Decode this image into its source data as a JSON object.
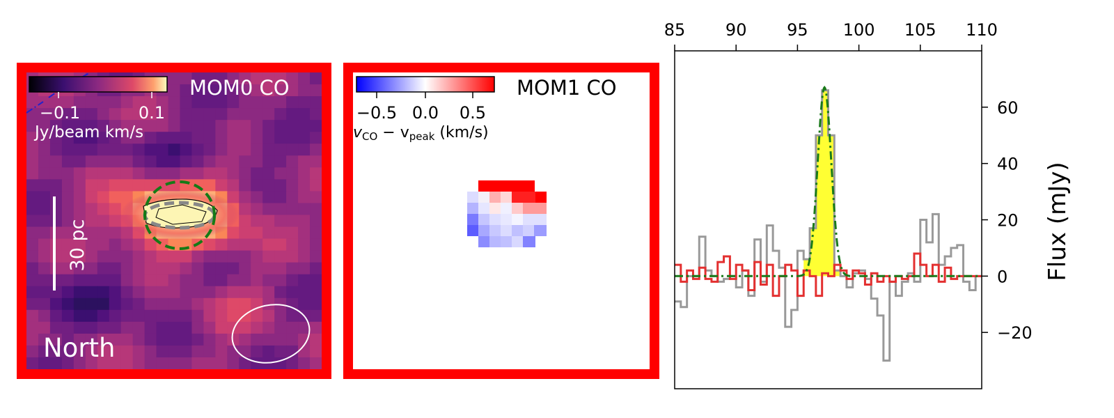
{
  "panels": {
    "mom0": {
      "label": "MOM0 CO",
      "colorbar": {
        "ticks": [
          "−0.1",
          "0.1"
        ],
        "unit": "Jy/beam km/s"
      },
      "scalebar_label": "30 pc",
      "region_label": "North"
    },
    "mom1": {
      "label": "MOM1 CO",
      "colorbar": {
        "ticks": [
          "−0.5",
          "0.0",
          "0.5"
        ],
        "label_main": "v",
        "label_sub1": "CO",
        "label_mid": " − v",
        "label_sub2": "peak",
        "label_unit": " (km/s)"
      }
    }
  },
  "chart_data": {
    "type": "line",
    "ylabel": "Flux (mJy)",
    "xlim": [
      85,
      110
    ],
    "ylim": [
      -40,
      80
    ],
    "x_ticks": [
      85,
      90,
      95,
      100,
      105,
      110
    ],
    "y_ticks": [
      -20,
      0,
      20,
      40,
      60
    ],
    "x_tick_labels": [
      "85",
      "90",
      "95",
      "100",
      "105",
      "110"
    ],
    "y_tick_labels": [
      "−20",
      "0",
      "20",
      "40",
      "60"
    ],
    "series": [
      {
        "style": "steps",
        "color": "#999999",
        "x": [
          85,
          85.5,
          86,
          86.5,
          87,
          87.5,
          88,
          88.5,
          89,
          89.5,
          90,
          90.5,
          91,
          91.5,
          92,
          92.5,
          93,
          93.5,
          94,
          94.5,
          95,
          95.5,
          96,
          96.5,
          97,
          97.5,
          98,
          98.5,
          99,
          99.5,
          100,
          100.5,
          101,
          101.5,
          102,
          102.5,
          103,
          103.5,
          104,
          104.5,
          105,
          105.5,
          106,
          106.5,
          107,
          107.5,
          108,
          108.5,
          109,
          109.5
        ],
        "y": [
          -9,
          -11,
          0,
          0,
          14,
          2,
          0,
          -2,
          -1,
          0,
          -4,
          2,
          -7,
          13,
          -2,
          18,
          9,
          3,
          -18,
          -12,
          9,
          6,
          17,
          50,
          66,
          50,
          2,
          0,
          -4,
          1,
          2,
          -1,
          -8,
          -14,
          -30,
          -2,
          -7,
          -2,
          1,
          -2,
          20,
          12,
          22,
          4,
          7,
          10,
          11,
          -2,
          -5,
          0
        ]
      },
      {
        "style": "steps",
        "color": "#e33030",
        "x": [
          85,
          85.5,
          86,
          86.5,
          87,
          87.5,
          88,
          88.5,
          89,
          89.5,
          90,
          90.5,
          91,
          91.5,
          92,
          92.5,
          93,
          93.5,
          94,
          94.5,
          95,
          95.5,
          96,
          96.5,
          97,
          97.5,
          98,
          98.5,
          99,
          99.5,
          100,
          100.5,
          101,
          101.5,
          102,
          102.5,
          103,
          103.5,
          104,
          104.5,
          105,
          105.5,
          106,
          106.5,
          107,
          107.5,
          108,
          108.5,
          109,
          109.5
        ],
        "y": [
          4,
          -2,
          2,
          -1,
          3,
          -1,
          -2,
          5,
          7,
          -1,
          4,
          2,
          -5,
          5,
          -3,
          4,
          -7,
          0,
          4,
          2,
          -7,
          2,
          0,
          -7,
          1,
          0,
          4,
          2,
          -1,
          2,
          1,
          -3,
          1,
          -2,
          0,
          -2,
          0,
          -1,
          0,
          8,
          4,
          0,
          4,
          -2,
          3,
          -1,
          0,
          0,
          0,
          0
        ]
      },
      {
        "style": "gaussian_fit",
        "color": "#1a7a1a",
        "amplitude": 67,
        "center": 97.2,
        "sigma": 0.55
      }
    ],
    "highlight_band": {
      "color": "#ffff33",
      "x_range": [
        95.5,
        98.5
      ]
    }
  }
}
